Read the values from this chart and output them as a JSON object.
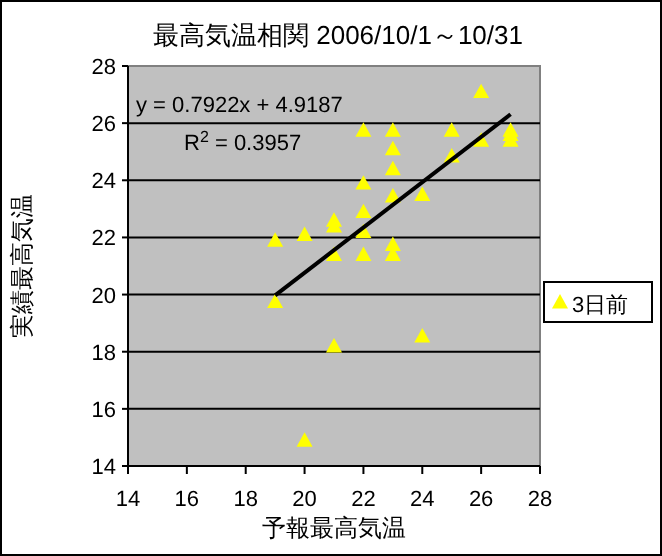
{
  "chart_data": {
    "type": "scatter",
    "title": "最高気温相関  2006/10/1～10/31",
    "xlabel": "予報最高気温",
    "ylabel": "実績最高気温",
    "xlim": [
      14,
      28
    ],
    "xticks": [
      14,
      16,
      18,
      20,
      22,
      24,
      26,
      28
    ],
    "ylim": [
      14,
      28
    ],
    "yticks": [
      14,
      16,
      18,
      20,
      22,
      24,
      26,
      28
    ],
    "grid": "y",
    "legend": "right",
    "annotations": [
      "y = 0.7922x + 4.9187",
      "R$^{2}$ = 0.3957"
    ],
    "series": [
      {
        "name": "3日前",
        "marker": "triangle",
        "color": "#ffff00",
        "x": [
          19,
          19,
          20,
          20,
          21,
          21,
          21,
          21,
          22,
          22,
          22,
          22,
          22,
          23,
          23,
          23,
          23,
          23,
          23,
          24,
          24,
          25,
          25,
          26,
          26,
          27,
          27,
          27
        ],
        "values": [
          21.9,
          19.75,
          22.1,
          14.9,
          22.6,
          22.4,
          21.4,
          18.2,
          25.75,
          23.9,
          22.9,
          22.2,
          21.4,
          25.75,
          25.1,
          24.4,
          23.45,
          21.75,
          21.4,
          23.5,
          18.55,
          25.75,
          24.85,
          27.1,
          25.4,
          25.75,
          25.4,
          25.6
        ]
      },
      {
        "type": "line",
        "color": "#000000",
        "x": [
          19,
          27
        ],
        "values": [
          19.97,
          26.31
        ]
      }
    ]
  }
}
